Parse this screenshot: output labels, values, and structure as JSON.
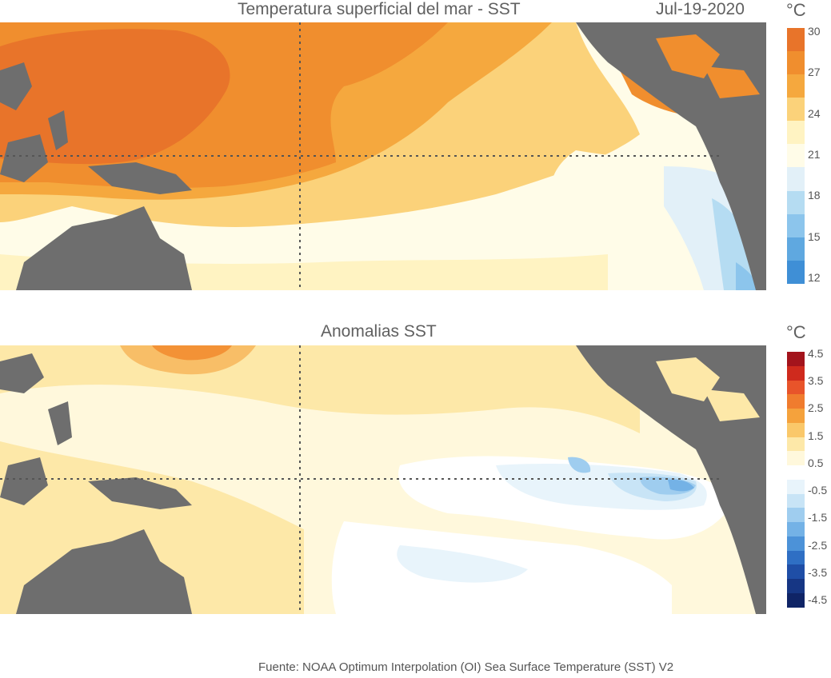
{
  "sst_panel": {
    "title": "Temperatura superficial del mar - SST",
    "date": "Jul-19-2020",
    "unit": "°C",
    "colorbar": {
      "colors": [
        "#e8742a",
        "#f08e2e",
        "#f5a83e",
        "#fbd27a",
        "#fff3c2",
        "#fffce8",
        "#e2f0f8",
        "#b5dcf2",
        "#8cc5ec",
        "#5fa8e0",
        "#3f8fd6"
      ],
      "labels": [
        "30",
        "27",
        "24",
        "21",
        "18",
        "15",
        "12"
      ]
    }
  },
  "anomaly_panel": {
    "title": "Anomalias SST",
    "unit": "°C",
    "colorbar": {
      "colors": [
        "#a3141c",
        "#cf2a1d",
        "#e8542a",
        "#f07c2e",
        "#f5a23c",
        "#fac86a",
        "#fde8a8",
        "#fff8dc",
        "#ffffff",
        "#e8f4fb",
        "#c8e4f6",
        "#9fcdef",
        "#74b2e6",
        "#4c92d8",
        "#2f6fc4",
        "#1f4ea6",
        "#163684",
        "#0f2466"
      ],
      "labels": [
        "4.5",
        "3.5",
        "2.5",
        "1.5",
        "0.5",
        "-0.5",
        "-1.5",
        "-2.5",
        "-3.5",
        "-4.5"
      ]
    }
  },
  "footer": {
    "source": "Fuente: NOAA Optimum Interpolation (OI) Sea Surface Temperature (SST) V2"
  }
}
